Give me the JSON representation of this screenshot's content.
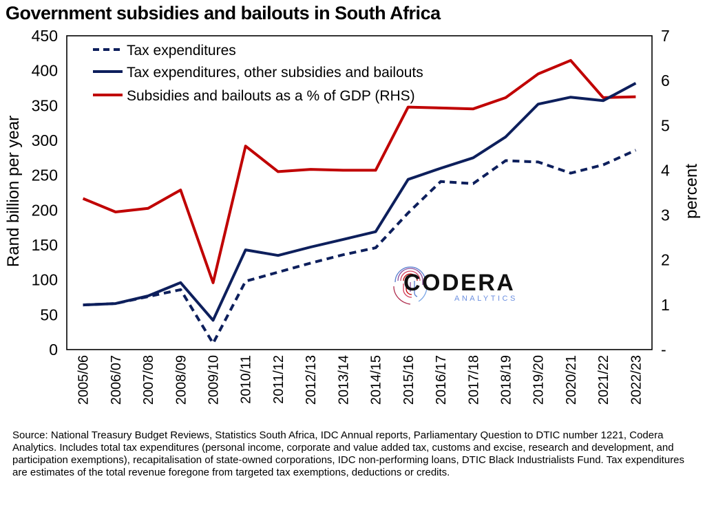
{
  "title": "Government subsidies and bailouts in South Africa",
  "source_note": "Source: National Treasury Budget Reviews, Statistics South Africa, IDC Annual reports, Parliamentary Question to DTIC number 1221, Codera Analytics. Includes total tax expenditures (personal income, corporate and value added tax, customs and excise, research and development, and participation exemptions), recapitalisation of state-owned corporations, IDC non-performing loans, DTIC Black Industrialists Fund. Tax expenditures are estimates of the total revenue foregone from targeted tax exemptions, deductions or credits.",
  "logo": {
    "name": "CODERA",
    "sub": "ANALYTICS"
  },
  "chart_data": {
    "type": "line",
    "categories": [
      "2005/06",
      "2006/07",
      "2007/08",
      "2008/09",
      "2009/10",
      "2010/11",
      "2011/12",
      "2012/13",
      "2013/14",
      "2014/15",
      "2015/16",
      "2016/17",
      "2017/18",
      "2018/19",
      "2019/20",
      "2020/21",
      "2021/22",
      "2022/23"
    ],
    "ylabel": "Rand billion per year",
    "y2label": "percent",
    "ylim": [
      0,
      450
    ],
    "y2lim": [
      0,
      7
    ],
    "yticks": [
      "0",
      "50",
      "100",
      "150",
      "200",
      "250",
      "300",
      "350",
      "400",
      "450"
    ],
    "y2ticks": [
      "-",
      "1",
      "2",
      "3",
      "4",
      "5",
      "6",
      "7"
    ],
    "legend_position": "top-left",
    "grid": false,
    "series": [
      {
        "name": "Tax expenditures",
        "axis": "left",
        "style": "dashed",
        "color": "#0d1f5c",
        "values": [
          64,
          66,
          76,
          86,
          9,
          98,
          111,
          124,
          136,
          146,
          196,
          241,
          238,
          271,
          269,
          253,
          265,
          286
        ]
      },
      {
        "name": "Tax expenditures, other subsidies and bailouts",
        "axis": "left",
        "style": "solid",
        "color": "#0d1f5c",
        "values": [
          64,
          66,
          77,
          96,
          42,
          143,
          135,
          147,
          158,
          169,
          244,
          260,
          275,
          305,
          352,
          362,
          357,
          382
        ]
      },
      {
        "name": "Subsidies and bailouts as a % of GDP (RHS)",
        "axis": "right",
        "style": "solid",
        "color": "#c00000",
        "values": [
          3.37,
          3.07,
          3.15,
          3.56,
          1.49,
          4.54,
          3.97,
          4.02,
          4.0,
          4.0,
          5.41,
          5.39,
          5.37,
          5.62,
          6.15,
          6.45,
          5.62,
          5.64
        ]
      }
    ]
  }
}
